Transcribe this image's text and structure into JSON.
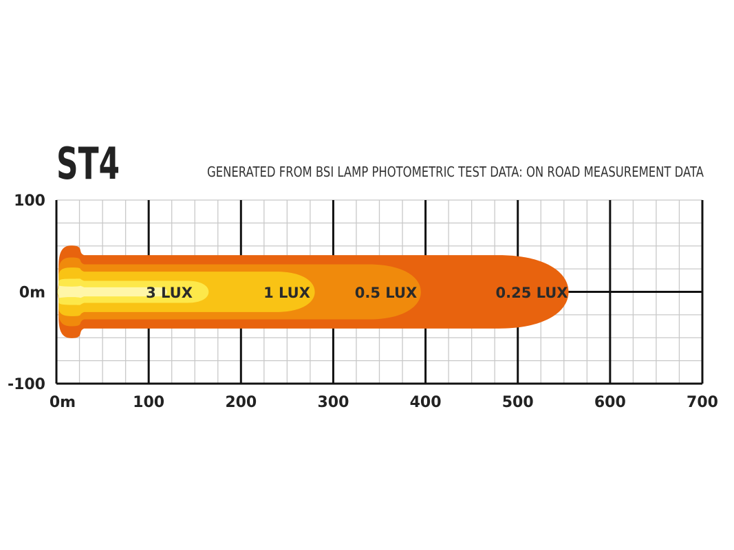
{
  "chart_data": {
    "type": "area",
    "title": "ST4",
    "subtitle": "GENERATED FROM BSI LAMP PHOTOMETRIC TEST DATA: ON ROAD MEASUREMENT DATA",
    "x_axis": {
      "range": [
        0,
        700
      ],
      "ticks": [
        0,
        100,
        200,
        300,
        400,
        500,
        600,
        700
      ],
      "tick_labels": [
        "0m",
        "100",
        "200",
        "300",
        "400",
        "500",
        "600",
        "700"
      ]
    },
    "y_axis": {
      "range": [
        -100,
        100
      ],
      "ticks": [
        100,
        0,
        -100
      ],
      "tick_labels": [
        "100",
        "0m",
        "-100"
      ]
    },
    "grid": true,
    "zones": [
      {
        "label": "0.25 LUX",
        "color": "#e8630e",
        "reach": 555,
        "half_width": 40
      },
      {
        "label": "0.5 LUX",
        "color": "#f08a0c",
        "reach": 395,
        "half_width": 30
      },
      {
        "label": "1 LUX",
        "color": "#f9c315",
        "reach": 280,
        "half_width": 22
      },
      {
        "label": "3 LUX",
        "color": "#fde84a",
        "reach": 165,
        "half_width": 12
      }
    ],
    "colors": {
      "grid_minor": "#c8c8c8",
      "grid_major": "#111111",
      "background": "#ffffff"
    }
  }
}
